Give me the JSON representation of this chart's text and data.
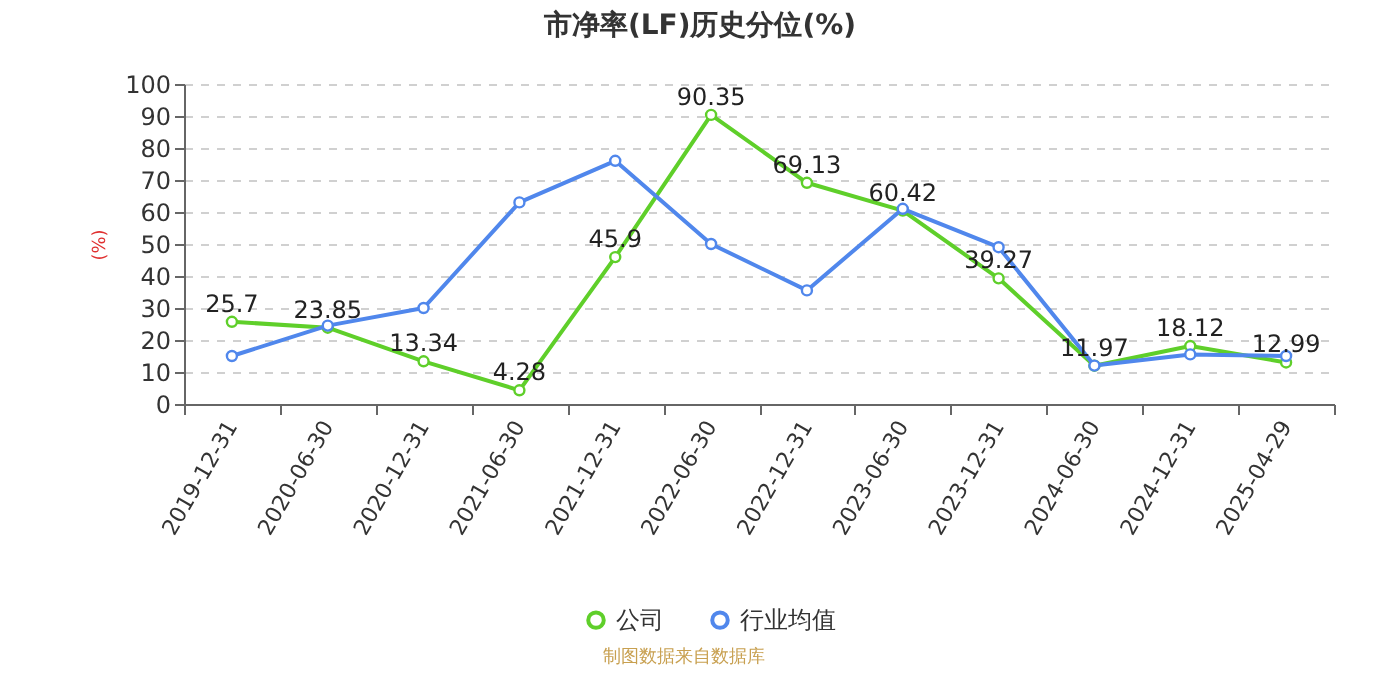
{
  "chart_data": {
    "type": "line",
    "title": "市净率(LF)历史分位(%)",
    "ylabel": "(%)",
    "categories": [
      "2019-12-31",
      "2020-06-30",
      "2020-12-31",
      "2021-06-30",
      "2021-12-31",
      "2022-06-30",
      "2022-12-31",
      "2023-06-30",
      "2023-12-31",
      "2024-06-30",
      "2024-12-31",
      "2025-04-29"
    ],
    "series": [
      {
        "name": "公司",
        "color": "#5fcf2a",
        "values": [
          25.7,
          23.85,
          13.34,
          4.28,
          45.9,
          90.35,
          69.13,
          60.42,
          39.27,
          11.97,
          18.12,
          12.99
        ],
        "value_labels": [
          "25.7",
          "23.85",
          "13.34",
          "4.28",
          "45.9",
          "90.35",
          "69.13",
          "60.42",
          "39.27",
          "11.97",
          "18.12",
          "12.99"
        ]
      },
      {
        "name": "行业均值",
        "color": "#5087ec",
        "values": [
          15,
          24.5,
          30,
          63,
          76,
          50,
          35.5,
          61,
          49,
          12,
          15.5,
          15
        ]
      }
    ],
    "ylim": [
      0,
      100
    ],
    "yticks": [
      0,
      10,
      20,
      30,
      40,
      50,
      60,
      70,
      80,
      90,
      100
    ],
    "grid": "y",
    "legend": "bottom",
    "marker": "circle",
    "line_style": "solid",
    "annotations": [
      "制图数据来自数据库"
    ]
  }
}
